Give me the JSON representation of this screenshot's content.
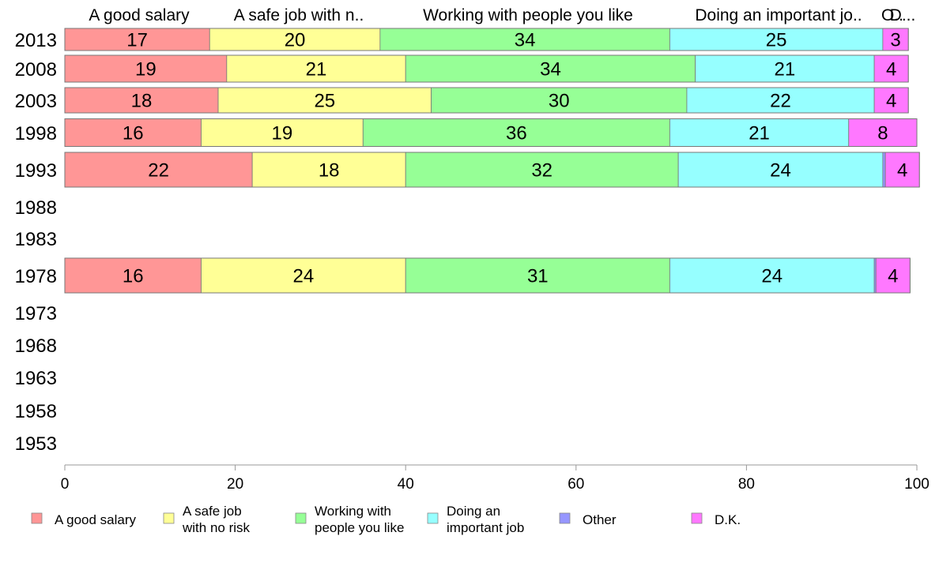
{
  "chart_data": {
    "type": "bar",
    "orientation": "horizontal",
    "stacked": true,
    "top_labels": [
      "A good salary",
      "A safe job with n..",
      "Working with people you like",
      "Doing an important jo..",
      "O..",
      "D..."
    ],
    "categories": [
      "2013",
      "2008",
      "2003",
      "1998",
      "1993",
      "1988",
      "1983",
      "1978",
      "1973",
      "1968",
      "1963",
      "1958",
      "1953"
    ],
    "series": [
      {
        "name": "A good salary",
        "legend_lines": [
          "A good salary"
        ],
        "color": "#ff9696",
        "values": [
          17,
          19,
          18,
          16,
          22,
          null,
          null,
          16,
          null,
          null,
          null,
          null,
          null
        ],
        "labels": [
          "17",
          "19",
          "18",
          "16",
          "22",
          "",
          "",
          "16",
          "",
          "",
          "",
          "",
          ""
        ]
      },
      {
        "name": "A safe job with no risk",
        "legend_lines": [
          "A safe job",
          "with no risk"
        ],
        "color": "#ffff96",
        "values": [
          20,
          21,
          25,
          19,
          18,
          null,
          null,
          24,
          null,
          null,
          null,
          null,
          null
        ],
        "labels": [
          "20",
          "21",
          "25",
          "19",
          "18",
          "",
          "",
          "24",
          "",
          "",
          "",
          "",
          ""
        ]
      },
      {
        "name": "Working with people you like",
        "legend_lines": [
          "Working with",
          "people you like"
        ],
        "color": "#96ff96",
        "values": [
          34,
          34,
          30,
          36,
          32,
          null,
          null,
          31,
          null,
          null,
          null,
          null,
          null
        ],
        "labels": [
          "34",
          "34",
          "30",
          "36",
          "32",
          "",
          "",
          "31",
          "",
          "",
          "",
          "",
          ""
        ]
      },
      {
        "name": "Doing an important job",
        "legend_lines": [
          "Doing an",
          "important job"
        ],
        "color": "#96ffff",
        "values": [
          25,
          21,
          22,
          21,
          24,
          null,
          null,
          24,
          null,
          null,
          null,
          null,
          null
        ],
        "labels": [
          "25",
          "21",
          "22",
          "21",
          "24",
          "",
          "",
          "24",
          "",
          "",
          "",
          "",
          ""
        ]
      },
      {
        "name": "Other",
        "legend_lines": [
          "Other"
        ],
        "color": "#9696ff",
        "values": [
          0,
          0,
          0,
          0,
          0.3,
          null,
          null,
          0.2,
          null,
          null,
          null,
          null,
          null
        ],
        "labels": [
          "",
          "",
          "",
          "",
          "",
          "",
          "",
          "",
          "",
          "",
          "",
          "",
          ""
        ]
      },
      {
        "name": "D.K.",
        "legend_lines": [
          "D.K."
        ],
        "color": "#ff78ff",
        "values": [
          3,
          4,
          4,
          8,
          4,
          null,
          null,
          4,
          null,
          null,
          null,
          null,
          null
        ],
        "labels": [
          "3",
          "4",
          "4",
          "8",
          "4",
          "",
          "",
          "4",
          "",
          "",
          "",
          "",
          ""
        ]
      }
    ],
    "xlim": [
      0,
      100
    ],
    "xticks": [
      "0",
      "20",
      "40",
      "60",
      "80",
      "100"
    ],
    "grid": false,
    "legend_position": "bottom"
  }
}
